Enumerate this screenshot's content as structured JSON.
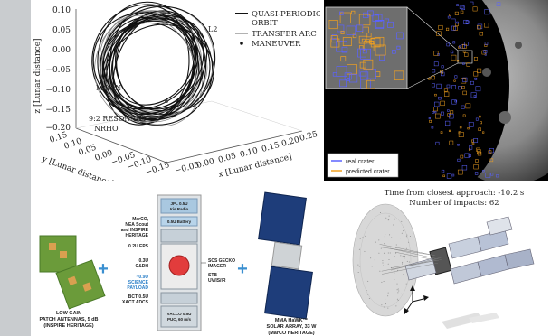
{
  "orbit_plot": {
    "z_label": "z [Lunar distance]",
    "y_label": "y [Lunar distance]",
    "x_label": "x [Lunar distance]",
    "z_ticks": [
      "0.10",
      "0.05",
      "0.00",
      "−0.05",
      "−0.10",
      "−0.15",
      "−0.20"
    ],
    "y_ticks": [
      "0.15",
      "0.10",
      "0.05",
      "0.00",
      "−0.05",
      "−0.10",
      "−0.15"
    ],
    "x_ticks": [
      "−0.05",
      "0.00",
      "0.05",
      "0.10",
      "0.15",
      "0.20",
      "0.25"
    ],
    "legend": {
      "quasi": "QUASI-PERIODIC",
      "orbit": "ORBIT",
      "transfer": "TRANSFER ARC",
      "maneuver": "MANEUVER"
    },
    "annotations": {
      "l2": "L2",
      "moon": "MOON",
      "resonant_1": "9:2 RESONANT",
      "resonant_2": "NRHO"
    }
  },
  "crater_image": {
    "legend_real": "real crater",
    "legend_predicted": "predicted crater",
    "colors": {
      "real": "#5b63ff",
      "predicted": "#f0a020"
    }
  },
  "satellite_diagram": {
    "antenna_caption_1": "LOW GAIN",
    "antenna_caption_2": "PATCH ANTENNAS, 5 dB",
    "antenna_caption_3": "(INSPIRE HERITAGE)",
    "left_labels": {
      "heritage_1": "MarCO,",
      "heritage_2": "NEA Scout",
      "heritage_3": "and INSPIRE",
      "heritage_4": "HERITAGE",
      "eps": "0.2U EPS",
      "cdh_1": "0.3U",
      "cdh_2": "C&DH",
      "payload_1": "~0.9U",
      "payload_2": "SCIENCE",
      "payload_3": "PAYLOAD",
      "adcs_1": "BCT 0.5U",
      "adcs_2": "XACT ADCS"
    },
    "stack_labels": {
      "radio_1": "JPL 0.5U",
      "radio_2": "Iris Radio",
      "battery": "0.5U Battery",
      "prop_1": "VACCO 0.5U",
      "prop_2": "PUC, 60 m/s"
    },
    "right_labels": {
      "imager_1": "SCS GECKO",
      "imager_2": "IMAGER",
      "uvis_1": "STB",
      "uvis_2": "UV/IS/IR"
    },
    "solar_caption_1": "MMA HaWK™",
    "solar_caption_2": "SOLAR ARRAY, 33 W",
    "solar_caption_3": "(MarCO HERITAGE)"
  },
  "impact_plot": {
    "time_label": "Time from closest approach: -10.2 s",
    "impacts_label": "Number of impacts: 62"
  }
}
